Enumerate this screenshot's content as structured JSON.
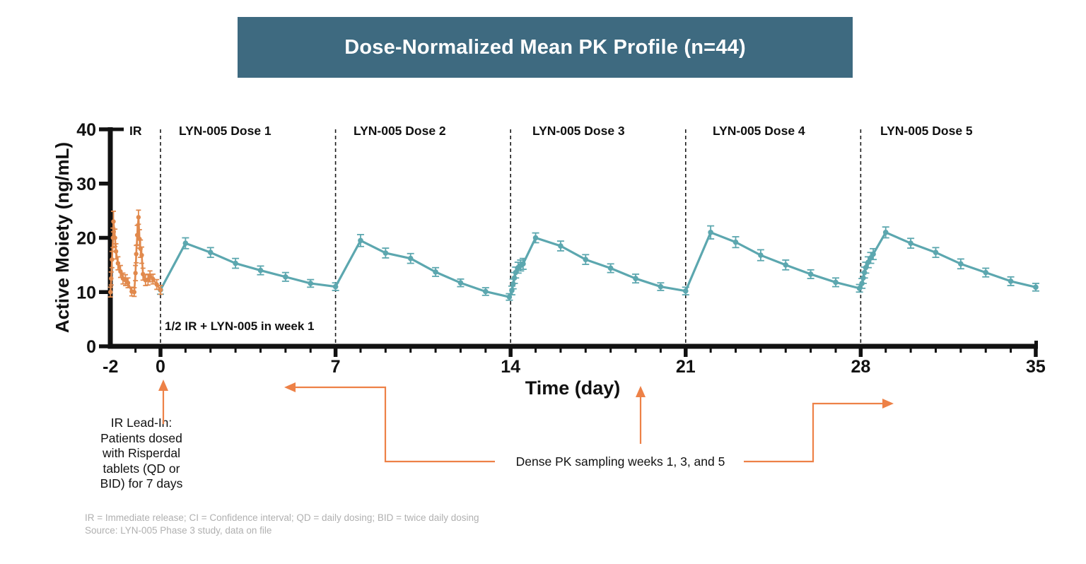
{
  "title": {
    "text": "Dose-Normalized Mean PK Profile (n=44)"
  },
  "chart_data": {
    "type": "line",
    "title": "Dose-Normalized Mean PK Profile (n=44)",
    "xlabel": "Time (day)",
    "ylabel": "Active Moiety (ng/mL)",
    "xlim": [
      -2,
      35
    ],
    "ylim": [
      0,
      40
    ],
    "x_ticks": [
      -2,
      0,
      7,
      14,
      21,
      28,
      35
    ],
    "y_ticks": [
      0,
      10,
      20,
      30,
      40
    ],
    "grid": false,
    "legend": "none",
    "region_dividers_x": [
      0,
      7,
      14,
      21,
      28
    ],
    "regions": [
      {
        "label": "IR"
      },
      {
        "label": "LYN-005 Dose 1"
      },
      {
        "label": "LYN-005 Dose 2"
      },
      {
        "label": "LYN-005 Dose 3"
      },
      {
        "label": "LYN-005 Dose 4"
      },
      {
        "label": "LYN-005 Dose 5"
      }
    ],
    "series": [
      {
        "name": "IR (Risperdal lead-in)",
        "color": "#E1894C",
        "points": [
          [
            -2.0,
            10.0,
            0.9
          ],
          [
            -1.97,
            12.5,
            1.2
          ],
          [
            -1.94,
            16.0,
            1.5
          ],
          [
            -1.9,
            20.0,
            1.8
          ],
          [
            -1.88,
            23.0,
            1.9
          ],
          [
            -1.82,
            20.0,
            1.6
          ],
          [
            -1.78,
            17.5,
            1.4
          ],
          [
            -1.7,
            15.3,
            1.2
          ],
          [
            -1.6,
            13.8,
            1.1
          ],
          [
            -1.5,
            12.5,
            1.0
          ],
          [
            -1.4,
            12.2,
            1.0
          ],
          [
            -1.3,
            11.7,
            0.9
          ],
          [
            -1.15,
            10.1,
            0.8
          ],
          [
            -1.05,
            10.0,
            0.8
          ],
          [
            -1.0,
            13.5,
            1.4
          ],
          [
            -0.97,
            17.0,
            1.6
          ],
          [
            -0.93,
            20.5,
            1.8
          ],
          [
            -0.88,
            23.8,
            1.3
          ],
          [
            -0.84,
            19.8,
            1.7
          ],
          [
            -0.8,
            18.0,
            1.6
          ],
          [
            -0.75,
            16.8,
            1.5
          ],
          [
            -0.7,
            13.3,
            1.1
          ],
          [
            -0.6,
            12.2,
            1.0
          ],
          [
            -0.5,
            12.3,
            1.0
          ],
          [
            -0.42,
            12.9,
            1.0
          ],
          [
            -0.3,
            12.4,
            0.9
          ],
          [
            -0.15,
            11.4,
            0.9
          ],
          [
            0,
            10.4,
            0.8
          ]
        ]
      },
      {
        "name": "LYN-005",
        "color": "#5CA7AF",
        "points": [
          [
            0,
            10.4,
            0.8
          ],
          [
            1,
            19.0,
            1.0
          ],
          [
            2,
            17.3,
            0.9
          ],
          [
            3,
            15.3,
            0.9
          ],
          [
            4,
            14.0,
            0.8
          ],
          [
            5,
            12.8,
            0.8
          ],
          [
            6,
            11.6,
            0.7
          ],
          [
            7,
            11.0,
            0.7
          ],
          [
            8,
            19.5,
            1.1
          ],
          [
            9,
            17.2,
            0.9
          ],
          [
            10,
            16.2,
            0.9
          ],
          [
            11,
            13.7,
            0.8
          ],
          [
            12,
            11.7,
            0.7
          ],
          [
            13,
            10.1,
            0.7
          ],
          [
            13.95,
            9.1,
            0.6
          ],
          [
            14.05,
            10.3,
            0.8
          ],
          [
            14.1,
            11.5,
            0.9
          ],
          [
            14.15,
            12.6,
            1.0
          ],
          [
            14.2,
            13.6,
            1.0
          ],
          [
            14.3,
            14.5,
            1.0
          ],
          [
            14.4,
            14.9,
            1.0
          ],
          [
            14.5,
            15.2,
            1.0
          ],
          [
            15,
            20.0,
            0.9
          ],
          [
            16,
            18.5,
            0.9
          ],
          [
            17,
            16.0,
            0.9
          ],
          [
            18,
            14.4,
            0.8
          ],
          [
            19,
            12.5,
            0.8
          ],
          [
            20,
            11.0,
            0.7
          ],
          [
            21,
            10.2,
            0.7
          ],
          [
            22,
            21.0,
            1.2
          ],
          [
            23,
            19.2,
            1.0
          ],
          [
            24,
            16.8,
            1.0
          ],
          [
            25,
            15.0,
            0.9
          ],
          [
            26,
            13.3,
            0.8
          ],
          [
            27,
            11.8,
            0.8
          ],
          [
            27.95,
            10.7,
            0.7
          ],
          [
            28.05,
            11.6,
            0.9
          ],
          [
            28.1,
            12.6,
            1.0
          ],
          [
            28.15,
            13.6,
            1.0
          ],
          [
            28.2,
            14.5,
            1.0
          ],
          [
            28.3,
            15.5,
            1.0
          ],
          [
            28.4,
            16.3,
            1.0
          ],
          [
            28.5,
            17.0,
            1.0
          ],
          [
            29,
            21.0,
            1.0
          ],
          [
            30,
            19.0,
            0.9
          ],
          [
            31,
            17.3,
            0.9
          ],
          [
            32,
            15.2,
            0.9
          ],
          [
            33,
            13.6,
            0.8
          ],
          [
            34,
            12.0,
            0.8
          ],
          [
            35,
            10.9,
            0.7
          ]
        ]
      }
    ]
  },
  "annotations": {
    "week1_note": "1/2 IR + LYN-005 in week 1",
    "ir_lead_in": "IR Lead-In:\nPatients dosed\nwith Risperdal\ntablets (QD or\nBID) for 7 days",
    "dense_pk": "Dense PK sampling weeks 1, 3, and 5"
  },
  "footer": {
    "line1": "IR = Immediate release; CI = Confidence interval; QD = daily dosing; BID = twice daily dosing",
    "line2": "Source: LYN-005 Phase 3 study, data on file"
  },
  "colors": {
    "banner": "#3E6A80",
    "ir_series": "#E1894C",
    "lyn_series": "#5CA7AF",
    "arrow": "#ED8147",
    "axis": "#111111",
    "footer_text": "#B0B0B0"
  }
}
